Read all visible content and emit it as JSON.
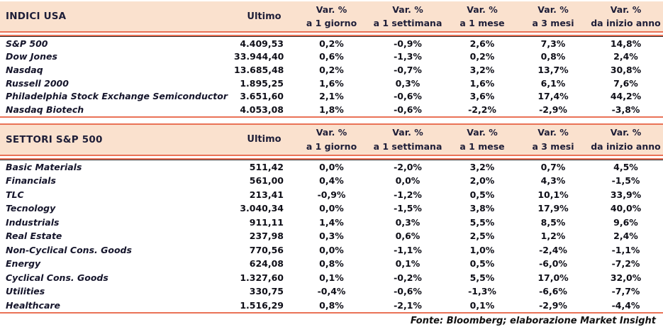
{
  "colors": {
    "header_band_bg": "#fae1ce",
    "rule_salmon": "#ea7257",
    "header_text": "#1e1e38",
    "body_text": "#0f0f18"
  },
  "footer": "Fonte: Bloomberg; elaborazione Market Insight",
  "chart_data": [
    {
      "type": "table",
      "title": "INDICI USA",
      "ultimo_label": "Ultimo",
      "var_columns": [
        {
          "line1": "Var. %",
          "line2": "a 1 giorno"
        },
        {
          "line1": "Var. %",
          "line2": "a 1 settimana"
        },
        {
          "line1": "Var. %",
          "line2": "a 1 mese"
        },
        {
          "line1": "Var. %",
          "line2": "a 3 mesi"
        },
        {
          "line1": "Var. %",
          "line2": "da inizio anno"
        }
      ],
      "rows": [
        [
          "S&P 500",
          "4.409,53",
          "0,2%",
          "-0,9%",
          "2,6%",
          "7,3%",
          "14,8%"
        ],
        [
          "Dow Jones",
          "33.944,40",
          "0,6%",
          "-1,3%",
          "0,2%",
          "0,8%",
          "2,4%"
        ],
        [
          "Nasdaq",
          "13.685,48",
          "0,2%",
          "-0,7%",
          "3,2%",
          "13,7%",
          "30,8%"
        ],
        [
          "Russell 2000",
          "1.895,25",
          "1,6%",
          "0,3%",
          "1,6%",
          "6,1%",
          "7,6%"
        ],
        [
          "Philadelphia Stock Exchange Semiconductor",
          "3.651,60",
          "2,1%",
          "-0,6%",
          "3,6%",
          "17,4%",
          "44,2%"
        ],
        [
          "Nasdaq Biotech",
          "4.053,08",
          "1,8%",
          "-0,6%",
          "-2,2%",
          "-2,9%",
          "-3,8%"
        ]
      ]
    },
    {
      "type": "table",
      "title": "SETTORI S&P 500",
      "ultimo_label": "Ultimo",
      "var_columns": [
        {
          "line1": "Var. %",
          "line2": "a 1 giorno"
        },
        {
          "line1": "Var. %",
          "line2": "a 1 settimana"
        },
        {
          "line1": "Var. %",
          "line2": "a 1 mese"
        },
        {
          "line1": "Var. %",
          "line2": "a 3 mesi"
        },
        {
          "line1": "Var. %",
          "line2": "da inizio anno"
        }
      ],
      "rows": [
        [
          "Basic Materials",
          "511,42",
          "0,0%",
          "-2,0%",
          "3,2%",
          "0,7%",
          "4,5%"
        ],
        [
          "Financials",
          "561,00",
          "0,4%",
          "0,0%",
          "2,0%",
          "4,3%",
          "-1,5%"
        ],
        [
          "TLC",
          "213,41",
          "-0,9%",
          "-1,2%",
          "0,5%",
          "10,1%",
          "33,9%"
        ],
        [
          "Tecnology",
          "3.040,34",
          "0,0%",
          "-1,5%",
          "3,8%",
          "17,9%",
          "40,0%"
        ],
        [
          "Industrials",
          "911,11",
          "1,4%",
          "0,3%",
          "5,5%",
          "8,5%",
          "9,6%"
        ],
        [
          "Real Estate",
          "237,98",
          "0,3%",
          "0,6%",
          "2,5%",
          "1,2%",
          "2,4%"
        ],
        [
          "Non-Cyclical Cons. Goods",
          "770,56",
          "0,0%",
          "-1,1%",
          "1,0%",
          "-2,4%",
          "-1,1%"
        ],
        [
          "Energy",
          "624,08",
          "0,8%",
          "0,1%",
          "0,5%",
          "-6,0%",
          "-7,2%"
        ],
        [
          "Cyclical Cons. Goods",
          "1.327,60",
          "0,1%",
          "-0,2%",
          "5,5%",
          "17,0%",
          "32,0%"
        ],
        [
          "Utilities",
          "330,75",
          "-0,4%",
          "-0,6%",
          "-1,3%",
          "-6,6%",
          "-7,7%"
        ],
        [
          "Healthcare",
          "1.516,29",
          "0,8%",
          "-2,1%",
          "0,1%",
          "-2,9%",
          "-4,4%"
        ]
      ]
    }
  ]
}
